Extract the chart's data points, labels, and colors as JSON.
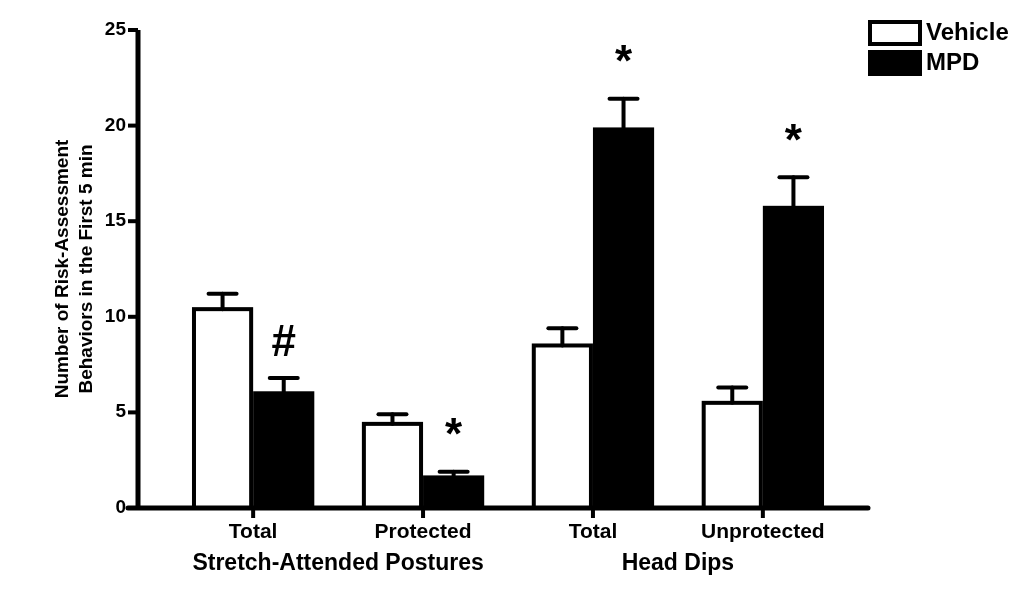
{
  "chart_data": {
    "type": "bar",
    "ylabel": "Number of Risk-Assessment\nBehaviors in the First 5 min",
    "categories": [
      "Total",
      "Protected",
      "Total",
      "Unprotected"
    ],
    "series": [
      {
        "name": "Vehicle",
        "color": "#ffffff",
        "values": [
          10.4,
          4.4,
          8.5,
          5.5
        ],
        "errors": [
          [
            10.4,
            11.2
          ],
          [
            4.4,
            4.9
          ],
          [
            8.5,
            9.4
          ],
          [
            5.5,
            6.3
          ]
        ]
      },
      {
        "name": "MPD",
        "color": "#000000",
        "values": [
          6.0,
          1.6,
          19.8,
          15.7
        ],
        "errors": [
          [
            6.0,
            6.8
          ],
          [
            1.6,
            1.9
          ],
          [
            19.8,
            21.4
          ],
          [
            15.7,
            17.3
          ]
        ]
      }
    ],
    "ylim": [
      0,
      25
    ],
    "yticks": [
      0,
      5,
      10,
      15,
      20,
      25
    ],
    "legend": "top right",
    "annotations": [
      "#",
      "*",
      "*",
      "*",
      "Stretch-Attended Postures",
      "Head Dips"
    ]
  }
}
